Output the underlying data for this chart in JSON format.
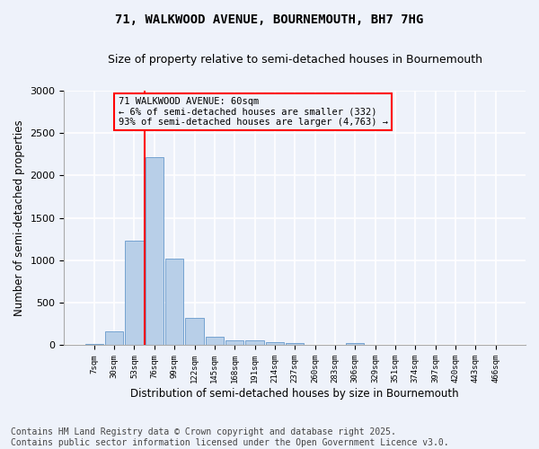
{
  "title": "71, WALKWOOD AVENUE, BOURNEMOUTH, BH7 7HG",
  "subtitle": "Size of property relative to semi-detached houses in Bournemouth",
  "xlabel": "Distribution of semi-detached houses by size in Bournemouth",
  "ylabel": "Number of semi-detached properties",
  "footnote1": "Contains HM Land Registry data © Crown copyright and database right 2025.",
  "footnote2": "Contains public sector information licensed under the Open Government Licence v3.0.",
  "categories": [
    "7sqm",
    "30sqm",
    "53sqm",
    "76sqm",
    "99sqm",
    "122sqm",
    "145sqm",
    "168sqm",
    "191sqm",
    "214sqm",
    "237sqm",
    "260sqm",
    "283sqm",
    "306sqm",
    "329sqm",
    "351sqm",
    "374sqm",
    "397sqm",
    "420sqm",
    "443sqm",
    "466sqm"
  ],
  "values": [
    20,
    160,
    1230,
    2210,
    1020,
    320,
    100,
    60,
    55,
    40,
    30,
    0,
    0,
    30,
    0,
    0,
    0,
    0,
    0,
    0,
    0
  ],
  "bar_color": "#b8cfe8",
  "bar_edge_color": "#6699cc",
  "vline_color": "red",
  "vline_x": 2.5,
  "annotation_title": "71 WALKWOOD AVENUE: 60sqm",
  "annotation_line1": "← 6% of semi-detached houses are smaller (332)",
  "annotation_line2": "93% of semi-detached houses are larger (4,763) →",
  "annotation_box_color": "red",
  "ylim": [
    0,
    3000
  ],
  "yticks": [
    0,
    500,
    1000,
    1500,
    2000,
    2500,
    3000
  ],
  "background_color": "#eef2fa",
  "grid_color": "white",
  "title_fontsize": 10,
  "subtitle_fontsize": 9,
  "footnote_fontsize": 7
}
